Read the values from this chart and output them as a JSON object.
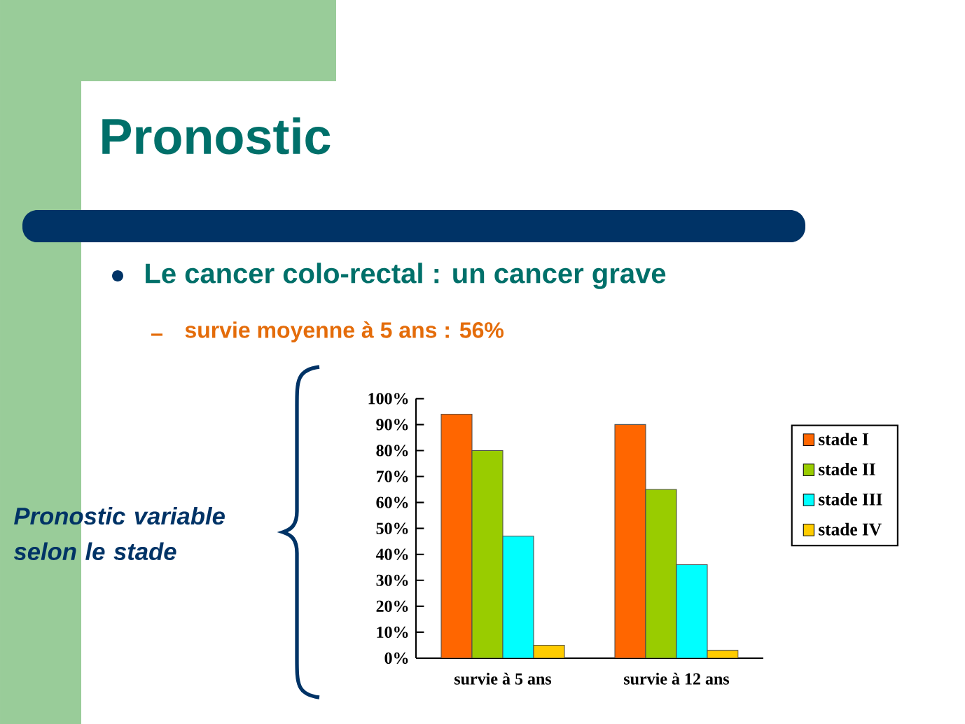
{
  "chart_data": {
    "type": "bar",
    "title": "Pronostic",
    "annotations": [
      "Le cancer colo-rectal : un cancer grave",
      "survie moyenne à 5 ans : 56%",
      "Pronostic variable selon le stade"
    ],
    "categories": [
      "survie à 5 ans",
      "survie à 12 ans"
    ],
    "series": [
      {
        "name": "stade I",
        "color": "#ff6600",
        "values": [
          94,
          90
        ]
      },
      {
        "name": "stade II",
        "color": "#99cc00",
        "values": [
          80,
          65
        ]
      },
      {
        "name": "stade III",
        "color": "#00ffff",
        "values": [
          47,
          36
        ]
      },
      {
        "name": "stade IV",
        "color": "#ffcc00",
        "values": [
          5,
          3
        ]
      }
    ],
    "ylim": [
      0,
      100
    ],
    "yticks": [
      {
        "value": 0,
        "label": "0%"
      },
      {
        "value": 10,
        "label": "10%"
      },
      {
        "value": 20,
        "label": "20%"
      },
      {
        "value": 30,
        "label": "30%"
      },
      {
        "value": 40,
        "label": "40%"
      },
      {
        "value": 50,
        "label": "50%"
      },
      {
        "value": 60,
        "label": "60%"
      },
      {
        "value": 70,
        "label": "70%"
      },
      {
        "value": 80,
        "label": "80%"
      },
      {
        "value": 90,
        "label": "90%"
      },
      {
        "value": 100,
        "label": "100%"
      }
    ],
    "grid": false,
    "legend": "right"
  }
}
